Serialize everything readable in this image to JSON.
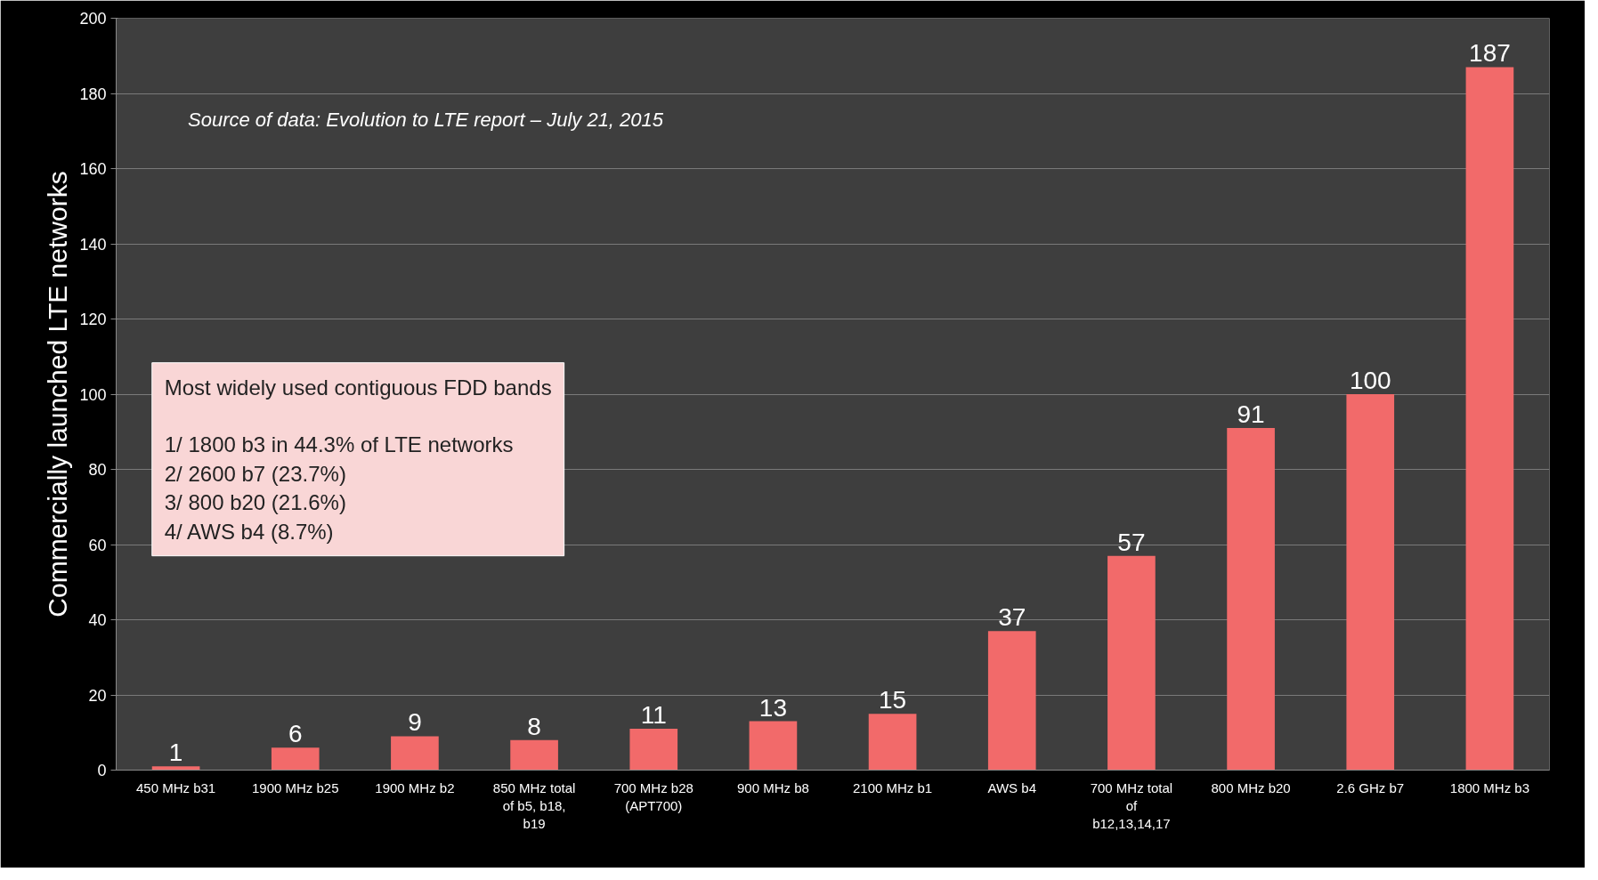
{
  "chart_data": {
    "type": "bar",
    "ylabel": "Commercially launched LTE networks",
    "categories": [
      "450 MHz b31",
      "1900 MHz b25",
      "1900 MHz b2",
      "850 MHz total of b5, b18, b19",
      "700 MHz b28 (APT700)",
      "900 MHz b8",
      "2100 MHz b1",
      "AWS b4",
      "700 MHz total of b12,13,14,17",
      "800 MHz b20",
      "2.6 GHz b7",
      "1800 MHz b3"
    ],
    "values": [
      1,
      6,
      9,
      8,
      11,
      13,
      15,
      37,
      57,
      91,
      100,
      187
    ],
    "color": "#f26a6a",
    "data_labels": true,
    "ylim": [
      0,
      200
    ],
    "yticks": [
      0,
      20,
      40,
      60,
      80,
      100,
      120,
      140,
      160,
      180,
      200
    ],
    "grid": "y",
    "annotations": [
      "Source of data: Evolution to LTE report – July 21, 2015",
      "Most widely used contiguous FDD bands\n\n1/ 1800 b3 in 44.3% of LTE networks\n2/ 2600 b7 (23.7%)\n3/   800 b20 (21.6%)\n4/ AWS b4 (8.7%)"
    ]
  }
}
